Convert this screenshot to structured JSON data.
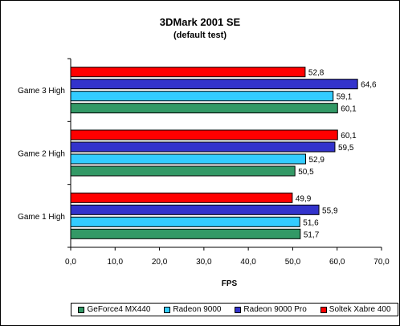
{
  "chart_data": {
    "type": "bar",
    "orientation": "horizontal",
    "title": "3DMark 2001 SE",
    "subtitle": "(default test)",
    "xlabel": "FPS",
    "xlim": [
      0,
      70
    ],
    "xticks": [
      "0,0",
      "10,0",
      "20,0",
      "30,0",
      "40,0",
      "50,0",
      "60,0",
      "70,0"
    ],
    "categories": [
      "Game 3 High",
      "Game 2 High",
      "Game 1 High"
    ],
    "series": [
      {
        "name": "Soltek Xabre 400",
        "color": "#ff0000",
        "values": [
          52.8,
          60.1,
          49.9
        ],
        "labels": [
          "52,8",
          "60,1",
          "49,9"
        ]
      },
      {
        "name": "Radeon 9000 Pro",
        "color": "#3333cc",
        "values": [
          64.6,
          59.5,
          55.9
        ],
        "labels": [
          "64,6",
          "59,5",
          "55,9"
        ]
      },
      {
        "name": "Radeon 9000",
        "color": "#33ccff",
        "values": [
          59.1,
          52.9,
          51.6
        ],
        "labels": [
          "59,1",
          "52,9",
          "51,6"
        ]
      },
      {
        "name": "GeForce4 MX440",
        "color": "#339966",
        "values": [
          60.1,
          50.5,
          51.7
        ],
        "labels": [
          "60,1",
          "50,5",
          "51,7"
        ]
      }
    ],
    "legend": {
      "position": "bottom",
      "items": [
        "GeForce4 MX440",
        "Radeon 9000",
        "Radeon 9000 Pro",
        "Soltek Xabre 400"
      ],
      "colors": [
        "#339966",
        "#33ccff",
        "#3333cc",
        "#ff0000"
      ]
    },
    "grid": false
  }
}
